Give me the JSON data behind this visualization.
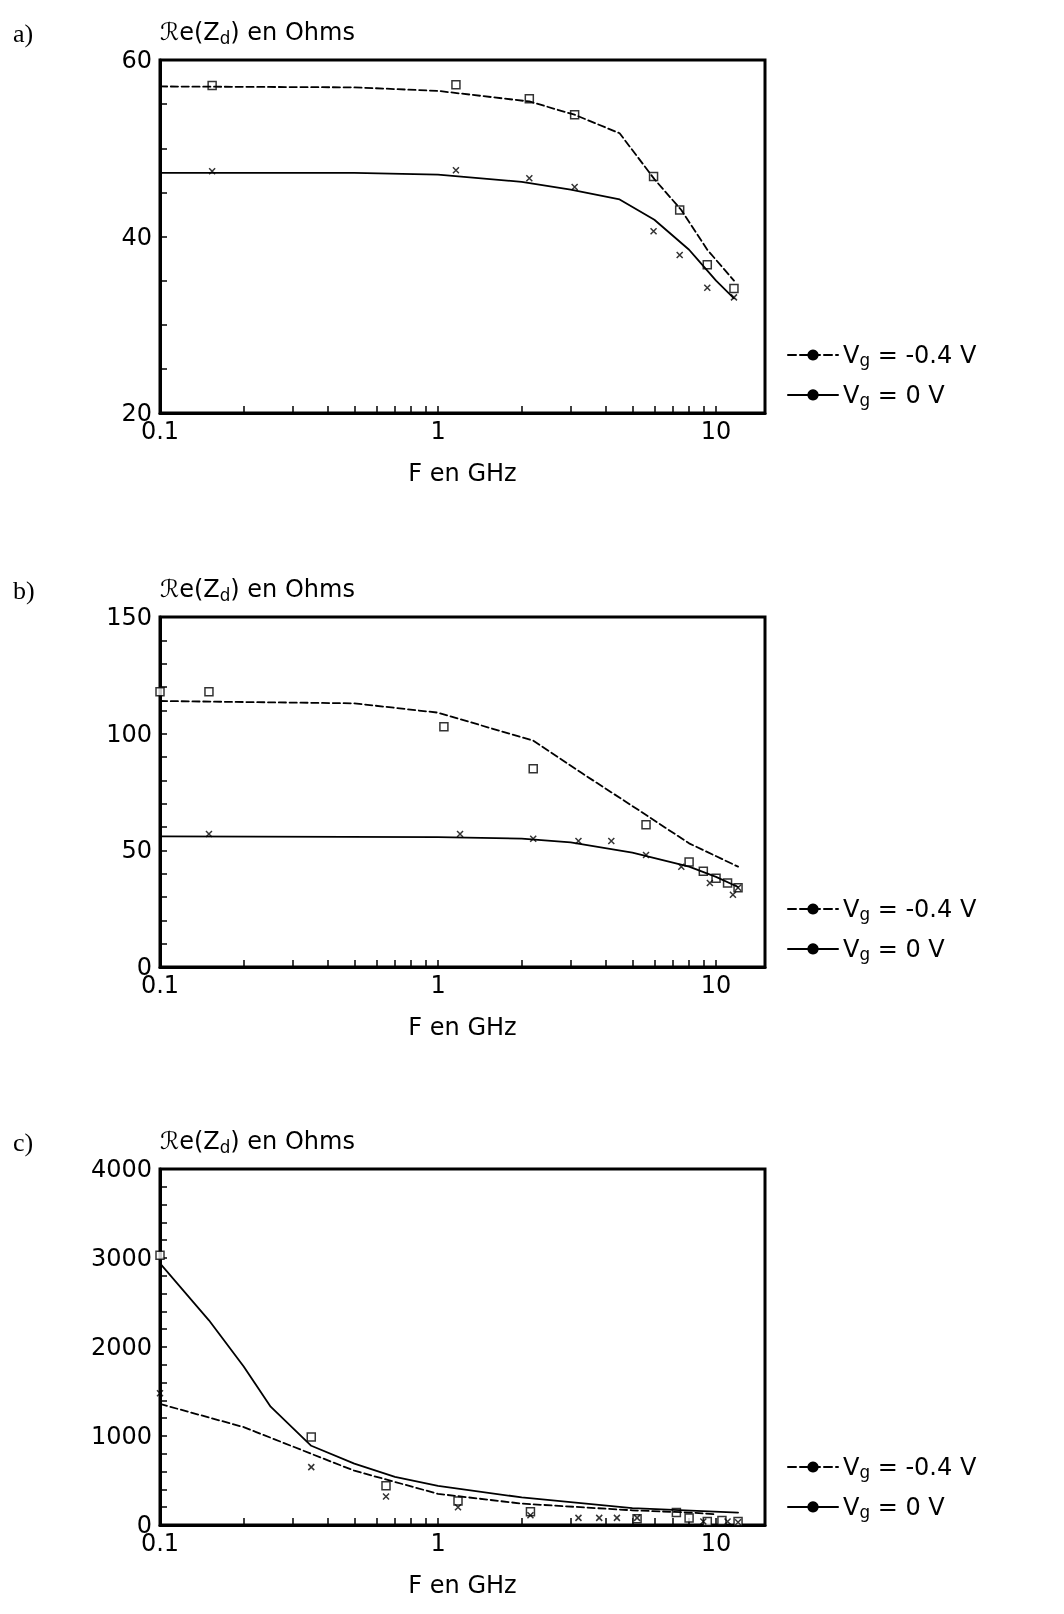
{
  "chart_data": [
    {
      "type": "line",
      "title": "a)",
      "ylabel": "ℛe(Z$_{d}$) en Ohms",
      "xlabel": "F en GHz",
      "log": "x",
      "xlim": [
        0.1,
        15
      ],
      "xticks": [
        0.1,
        {
          "value": 0.2,
          "label": null
        },
        {
          "value": 0.3,
          "label": null
        },
        {
          "value": 0.4,
          "label": null
        },
        {
          "value": 0.5,
          "label": null
        },
        {
          "value": 0.6,
          "label": null
        },
        {
          "value": 0.7,
          "label": null
        },
        {
          "value": 0.8,
          "label": null
        },
        {
          "value": 0.9,
          "label": null
        },
        1,
        {
          "value": 2,
          "label": null
        },
        {
          "value": 3,
          "label": null
        },
        {
          "value": 4,
          "label": null
        },
        {
          "value": 5,
          "label": null
        },
        {
          "value": 6,
          "label": null
        },
        {
          "value": 7,
          "label": null
        },
        {
          "value": 8,
          "label": null
        },
        {
          "value": 9,
          "label": null
        },
        10
      ],
      "ylim": [
        20,
        60
      ],
      "yticks": [
        20,
        {
          "value": 25,
          "label": null
        },
        {
          "value": 30,
          "label": null
        },
        {
          "value": 35,
          "label": null
        },
        40,
        {
          "value": 45,
          "label": null
        },
        {
          "value": 50,
          "label": null
        },
        {
          "value": 55,
          "label": null
        },
        60
      ],
      "grid": false,
      "legend": "right",
      "series": [
        {
          "name": "V$_{g}$ = -0.4 V",
          "color": "#000000",
          "line_style": "dashed",
          "marker": "none",
          "x": [
            0.1,
            0.5,
            1,
            2.13,
            3.1,
            4.5,
            6,
            7.5,
            9.3,
            11.6
          ],
          "values": [
            57.0,
            56.9,
            56.5,
            55.3,
            53.8,
            51.7,
            46.5,
            43.0,
            38.5,
            35.0
          ]
        },
        {
          "name": "V$_{g}$ = 0 V",
          "color": "#000000",
          "line_style": "solid",
          "marker": "none",
          "x": [
            0.1,
            0.5,
            1,
            2,
            3,
            4.5,
            6,
            8,
            10,
            11.6
          ],
          "values": [
            47.2,
            47.2,
            47.0,
            46.2,
            45.3,
            44.2,
            41.9,
            38.5,
            35.0,
            33.0
          ]
        },
        {
          "type": "scatter",
          "color": "#000000",
          "marker": "square",
          "x": [
            0.154,
            1.16,
            2.13,
            3.1,
            5.96,
            7.4,
            9.3,
            11.6
          ],
          "values": [
            57.1,
            57.2,
            55.6,
            53.8,
            46.8,
            43.0,
            36.8,
            34.1
          ]
        },
        {
          "type": "scatter",
          "color": "#000000",
          "marker": "cross",
          "x": [
            0.154,
            1.16,
            2.13,
            3.1,
            5.96,
            7.4,
            9.3,
            11.6
          ],
          "values": [
            47.4,
            47.5,
            46.6,
            45.6,
            40.6,
            37.9,
            34.2,
            33.1
          ]
        }
      ]
    },
    {
      "type": "line",
      "title": "b)",
      "ylabel": "ℛe(Z$_{d}$) en Ohms",
      "xlabel": "F en GHz",
      "log": "x",
      "xlim": [
        0.1,
        15
      ],
      "xticks": [
        0.1,
        {
          "value": 0.2,
          "label": null
        },
        {
          "value": 0.3,
          "label": null
        },
        {
          "value": 0.4,
          "label": null
        },
        {
          "value": 0.5,
          "label": null
        },
        {
          "value": 0.6,
          "label": null
        },
        {
          "value": 0.7,
          "label": null
        },
        {
          "value": 0.8,
          "label": null
        },
        {
          "value": 0.9,
          "label": null
        },
        1,
        {
          "value": 2,
          "label": null
        },
        {
          "value": 3,
          "label": null
        },
        {
          "value": 4,
          "label": null
        },
        {
          "value": 5,
          "label": null
        },
        {
          "value": 6,
          "label": null
        },
        {
          "value": 7,
          "label": null
        },
        {
          "value": 8,
          "label": null
        },
        {
          "value": 9,
          "label": null
        },
        10
      ],
      "ylim": [
        0,
        150
      ],
      "yticks": [
        0,
        {
          "value": 10,
          "label": null
        },
        {
          "value": 20,
          "label": null
        },
        {
          "value": 30,
          "label": null
        },
        {
          "value": 40,
          "label": null
        },
        50,
        {
          "value": 60,
          "label": null
        },
        {
          "value": 70,
          "label": null
        },
        {
          "value": 80,
          "label": null
        },
        {
          "value": 90,
          "label": null
        },
        100,
        {
          "value": 110,
          "label": null
        },
        {
          "value": 120,
          "label": null
        },
        {
          "value": 130,
          "label": null
        },
        {
          "value": 140,
          "label": null
        },
        150
      ],
      "grid": false,
      "legend": "right",
      "series": [
        {
          "name": "V$_{g}$ = -0.4 V",
          "color": "#000000",
          "line_style": "dashed",
          "marker": "none",
          "x": [
            0.1,
            0.5,
            1,
            2.2,
            3.3,
            5,
            8,
            12
          ],
          "values": [
            114,
            113,
            109,
            97,
            83,
            69,
            53,
            43
          ]
        },
        {
          "name": "V$_{g}$ = 0 V",
          "color": "#000000",
          "line_style": "solid",
          "marker": "none",
          "x": [
            0.1,
            1,
            2,
            3,
            5,
            8,
            10,
            12
          ],
          "values": [
            56,
            55.7,
            55,
            53.4,
            49,
            43,
            38.6,
            34.3
          ]
        },
        {
          "type": "scatter",
          "color": "#000000",
          "marker": "square",
          "x": [
            0.1,
            0.15,
            1.05,
            2.2,
            5.6,
            8,
            9,
            10,
            11,
            12
          ],
          "values": [
            118,
            118,
            103,
            85,
            61,
            45,
            41,
            38,
            36,
            34
          ]
        },
        {
          "type": "scatter",
          "color": "#000000",
          "marker": "cross",
          "x": [
            0.15,
            1.2,
            2.2,
            3.2,
            4.2,
            5.6,
            7.5,
            9.5,
            11.5,
            12
          ],
          "values": [
            57,
            57,
            55,
            54,
            54,
            48,
            43,
            36,
            31,
            34
          ]
        }
      ]
    },
    {
      "type": "line",
      "title": "c)",
      "ylabel": "ℛe(Z$_{d}$) en Ohms",
      "xlabel": "F en GHz",
      "log": "x",
      "xlim": [
        0.1,
        15
      ],
      "xticks": [
        0.1,
        {
          "value": 0.2,
          "label": null
        },
        {
          "value": 0.3,
          "label": null
        },
        {
          "value": 0.4,
          "label": null
        },
        {
          "value": 0.5,
          "label": null
        },
        {
          "value": 0.6,
          "label": null
        },
        {
          "value": 0.7,
          "label": null
        },
        {
          "value": 0.8,
          "label": null
        },
        {
          "value": 0.9,
          "label": null
        },
        1,
        {
          "value": 2,
          "label": null
        },
        {
          "value": 3,
          "label": null
        },
        {
          "value": 4,
          "label": null
        },
        {
          "value": 5,
          "label": null
        },
        {
          "value": 6,
          "label": null
        },
        {
          "value": 7,
          "label": null
        },
        {
          "value": 8,
          "label": null
        },
        {
          "value": 9,
          "label": null
        },
        10
      ],
      "ylim": [
        0,
        4000
      ],
      "yticks": [
        0,
        {
          "value": 200,
          "label": null
        },
        {
          "value": 400,
          "label": null
        },
        {
          "value": 600,
          "label": null
        },
        {
          "value": 800,
          "label": null
        },
        1000,
        {
          "value": 1200,
          "label": null
        },
        {
          "value": 1400,
          "label": null
        },
        {
          "value": 1600,
          "label": null
        },
        {
          "value": 1800,
          "label": null
        },
        2000,
        {
          "value": 2200,
          "label": null
        },
        {
          "value": 2400,
          "label": null
        },
        {
          "value": 2600,
          "label": null
        },
        {
          "value": 2800,
          "label": null
        },
        3000,
        {
          "value": 3200,
          "label": null
        },
        {
          "value": 3400,
          "label": null
        },
        {
          "value": 3600,
          "label": null
        },
        {
          "value": 3800,
          "label": null
        },
        4000
      ],
      "grid": false,
      "legend": "right",
      "series": [
        {
          "name": "V$_{g}$ = -0.4 V",
          "color": "#000000",
          "line_style": "dashed",
          "marker": "none",
          "x": [
            0.1,
            0.2,
            0.35,
            0.5,
            1,
            2,
            5,
            8,
            10
          ],
          "values": [
            1360,
            1100,
            800,
            610,
            350,
            240,
            165,
            140,
            120
          ]
        },
        {
          "name": "V$_{g}$ = 0 V",
          "color": "#000000",
          "line_style": "solid",
          "marker": "none",
          "x": [
            0.1,
            0.15,
            0.2,
            0.25,
            0.35,
            0.5,
            0.7,
            1,
            2,
            5,
            12
          ],
          "values": [
            2940,
            2300,
            1780,
            1330,
            890,
            690,
            540,
            440,
            310,
            190,
            140
          ]
        },
        {
          "type": "scatter",
          "color": "#000000",
          "marker": "square",
          "x": [
            0.1,
            0.35,
            0.65,
            1.18,
            2.15,
            5.2,
            7.2,
            8,
            9.3,
            10.5,
            12
          ],
          "values": [
            3030,
            990,
            440,
            270,
            150,
            70,
            140,
            80,
            40,
            50,
            40
          ]
        },
        {
          "type": "scatter",
          "color": "#000000",
          "marker": "cross",
          "x": [
            0.1,
            0.35,
            0.65,
            1.18,
            2.15,
            3.2,
            3.8,
            4.4,
            5.2,
            9,
            11,
            12
          ],
          "values": [
            1480,
            650,
            320,
            200,
            110,
            80,
            80,
            80,
            80,
            40,
            40,
            30
          ]
        }
      ]
    }
  ]
}
